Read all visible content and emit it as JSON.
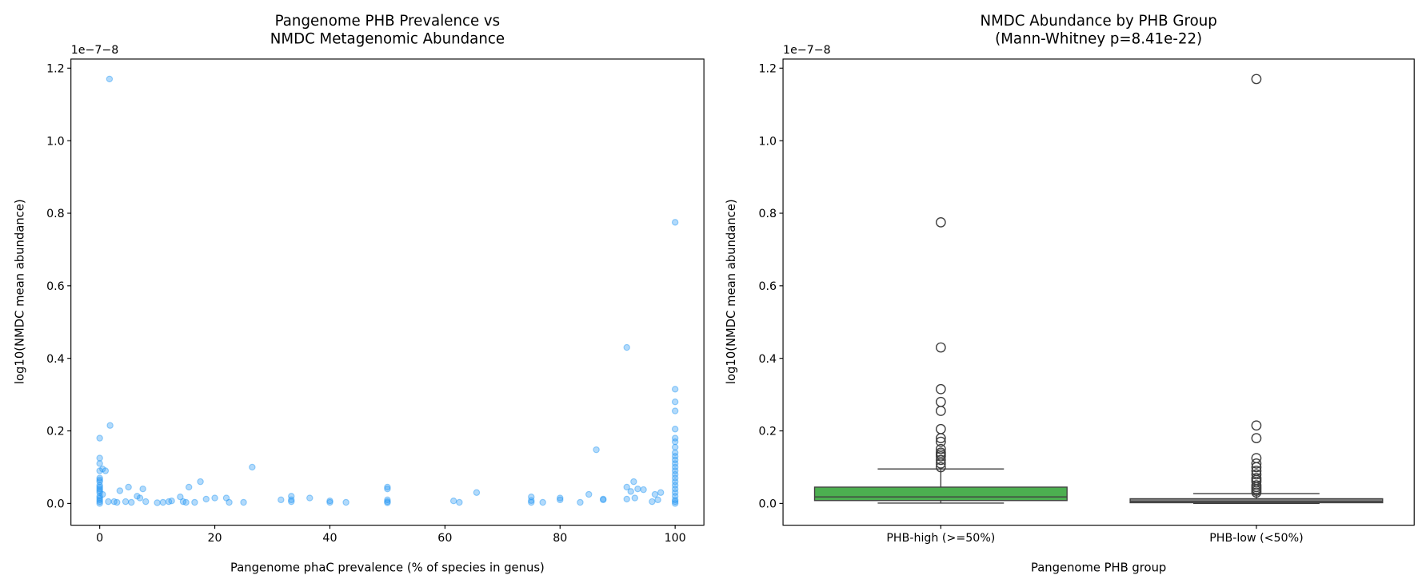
{
  "chart_data": [
    {
      "type": "scatter",
      "title": [
        "Pangenome PHB Prevalence vs",
        "NMDC Metagenomic Abundance"
      ],
      "xlabel": "Pangenome phaC prevalence (% of species in genus)",
      "ylabel": "log10(NMDC mean abundance)",
      "offset_label": "1e−7−8",
      "xlim": [
        -5,
        105
      ],
      "ylim": [
        -0.06,
        1.225
      ],
      "xticks": [
        0,
        20,
        40,
        60,
        80,
        100
      ],
      "xtick_labels": [
        "0",
        "20",
        "40",
        "60",
        "80",
        "100"
      ],
      "yticks": [
        0,
        0.2,
        0.4,
        0.6,
        0.8,
        1.0,
        1.2
      ],
      "ytick_labels": [
        "0.0",
        "0.2",
        "0.4",
        "0.6",
        "0.8",
        "1.0",
        "1.2"
      ],
      "grid": false,
      "color": "#2196F3",
      "alpha": 0.35,
      "points": [
        [
          1.7,
          1.17
        ],
        [
          1.8,
          0.215
        ],
        [
          0,
          0.18
        ],
        [
          0,
          0.125
        ],
        [
          0,
          0.11
        ],
        [
          0,
          0.09
        ],
        [
          0.5,
          0.095
        ],
        [
          1,
          0.09
        ],
        [
          0,
          0.07
        ],
        [
          0,
          0.06
        ],
        [
          0,
          0.05
        ],
        [
          0,
          0.04
        ],
        [
          0,
          0.03
        ],
        [
          0,
          0.02
        ],
        [
          0,
          0.01
        ],
        [
          0,
          0.005
        ],
        [
          0,
          0
        ],
        [
          0.5,
          0.025
        ],
        [
          0,
          0.065
        ],
        [
          0,
          0.045
        ],
        [
          0,
          0.035
        ],
        [
          0,
          0.015
        ],
        [
          1.5,
          0.005
        ],
        [
          2.5,
          0.005
        ],
        [
          3,
          0.003
        ],
        [
          3.5,
          0.035
        ],
        [
          4.5,
          0.005
        ],
        [
          5,
          0.045
        ],
        [
          5.5,
          0.003
        ],
        [
          6.5,
          0.02
        ],
        [
          7,
          0.015
        ],
        [
          7.5,
          0.04
        ],
        [
          8,
          0.005
        ],
        [
          10,
          0.002
        ],
        [
          11,
          0.003
        ],
        [
          12,
          0.005
        ],
        [
          12.5,
          0.007
        ],
        [
          14,
          0.018
        ],
        [
          14.5,
          0.005
        ],
        [
          15,
          0.003
        ],
        [
          15.5,
          0.045
        ],
        [
          16.5,
          0.003
        ],
        [
          17.5,
          0.06
        ],
        [
          18.5,
          0.012
        ],
        [
          20,
          0.015
        ],
        [
          22,
          0.015
        ],
        [
          22.5,
          0.003
        ],
        [
          25,
          0.003
        ],
        [
          26.5,
          0.1
        ],
        [
          31.5,
          0.01
        ],
        [
          33.3,
          0.02
        ],
        [
          33.3,
          0.01
        ],
        [
          33.3,
          0.005
        ],
        [
          36.5,
          0.015
        ],
        [
          40,
          0.007
        ],
        [
          40,
          0.003
        ],
        [
          42.8,
          0.003
        ],
        [
          50,
          0.045
        ],
        [
          50,
          0.04
        ],
        [
          50,
          0.01
        ],
        [
          50,
          0.005
        ],
        [
          50,
          0.002
        ],
        [
          61.5,
          0.007
        ],
        [
          62.5,
          0.003
        ],
        [
          65.5,
          0.03
        ],
        [
          75,
          0.018
        ],
        [
          75,
          0.008
        ],
        [
          75,
          0.003
        ],
        [
          77,
          0.003
        ],
        [
          80,
          0.015
        ],
        [
          80,
          0.01
        ],
        [
          83.5,
          0.003
        ],
        [
          85,
          0.025
        ],
        [
          86.3,
          0.148
        ],
        [
          87.5,
          0.01
        ],
        [
          87.5,
          0.012
        ],
        [
          91.6,
          0.43
        ],
        [
          91.6,
          0.045
        ],
        [
          91.6,
          0.012
        ],
        [
          92.3,
          0.033
        ],
        [
          92.8,
          0.06
        ],
        [
          93,
          0.015
        ],
        [
          93.5,
          0.04
        ],
        [
          94.5,
          0.038
        ],
        [
          96,
          0.005
        ],
        [
          96.5,
          0.025
        ],
        [
          97,
          0.01
        ],
        [
          97.5,
          0.03
        ],
        [
          100,
          0.775
        ],
        [
          100,
          0.315
        ],
        [
          100,
          0.28
        ],
        [
          100,
          0.255
        ],
        [
          100,
          0.205
        ],
        [
          100,
          0.18
        ],
        [
          100,
          0.17
        ],
        [
          100,
          0.155
        ],
        [
          100,
          0.14
        ],
        [
          100,
          0.13
        ],
        [
          100,
          0.12
        ],
        [
          100,
          0.11
        ],
        [
          100,
          0.1
        ],
        [
          100,
          0.09
        ],
        [
          100,
          0.08
        ],
        [
          100,
          0.07
        ],
        [
          100,
          0.06
        ],
        [
          100,
          0.05
        ],
        [
          100,
          0.04
        ],
        [
          100,
          0.03
        ],
        [
          100,
          0.02
        ],
        [
          100,
          0.01
        ],
        [
          100,
          0.005
        ],
        [
          100,
          0
        ]
      ]
    },
    {
      "type": "box",
      "title": [
        "NMDC Abundance by PHB Group",
        "(Mann-Whitney p=8.41e-22)"
      ],
      "xlabel": "Pangenome PHB group",
      "ylabel": "log10(NMDC mean abundance)",
      "offset_label": "1e−7−8",
      "ylim": [
        -0.06,
        1.225
      ],
      "yticks": [
        0,
        0.2,
        0.4,
        0.6,
        0.8,
        1.0,
        1.2
      ],
      "ytick_labels": [
        "0.0",
        "0.2",
        "0.4",
        "0.6",
        "0.8",
        "1.0",
        "1.2"
      ],
      "grid": false,
      "categories": [
        "PHB-high (>=50%)",
        "PHB-low (<50%)"
      ],
      "boxes": [
        {
          "category": "PHB-high (>=50%)",
          "color": "#4CAF50",
          "whisker_low": 0.001,
          "q1": 0.008,
          "median": 0.018,
          "q3": 0.045,
          "whisker_high": 0.095,
          "outliers": [
            0.775,
            0.43,
            0.315,
            0.28,
            0.255,
            0.205,
            0.18,
            0.17,
            0.15,
            0.14,
            0.135,
            0.13,
            0.12,
            0.11,
            0.1
          ]
        },
        {
          "category": "PHB-low (<50%)",
          "color": "#808080",
          "whisker_low": 0.0,
          "q1": 0.002,
          "median": 0.006,
          "q3": 0.013,
          "whisker_high": 0.027,
          "outliers": [
            1.17,
            0.215,
            0.18,
            0.125,
            0.11,
            0.1,
            0.09,
            0.08,
            0.07,
            0.065,
            0.06,
            0.05,
            0.045,
            0.04,
            0.035,
            0.03
          ]
        }
      ]
    }
  ]
}
